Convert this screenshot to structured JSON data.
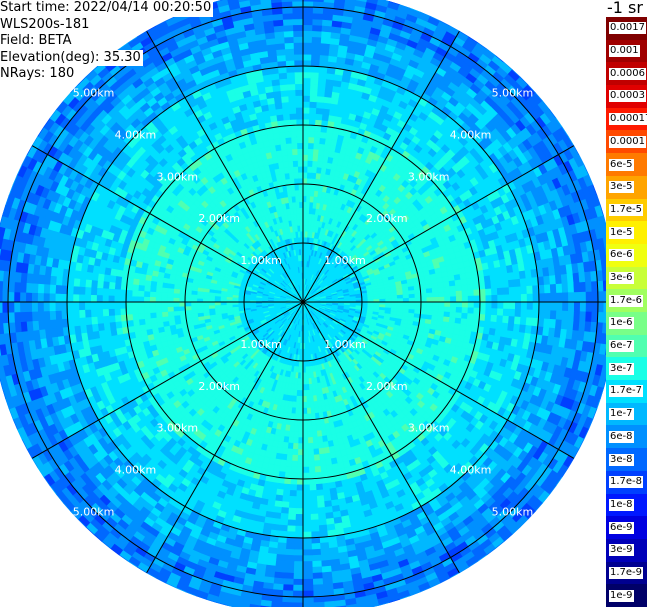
{
  "header": {
    "start_time": "Start time: 2022/04/14 00:20:50",
    "site": "WLS200s-181",
    "field": "Field: BETA",
    "elevation": "Elevation(deg): 35.30",
    "nrays": "NRays: 180"
  },
  "chart_data": {
    "type": "heatmap",
    "projection": "polar (PPI)",
    "rays": 180,
    "field": "BETA",
    "range_rings_km": [
      1,
      2,
      3,
      4,
      5
    ],
    "range_ring_labels": [
      "1.00km",
      "2.00km",
      "3.00km",
      "4.00km",
      "5.00km"
    ],
    "max_range_km": 5.3,
    "radial_profile": [
      {
        "range_km": 0.0,
        "value": "1.7e-7"
      },
      {
        "range_km": 1.0,
        "value": "1.7e-7"
      },
      {
        "range_km": 1.05,
        "value": "3e-7"
      },
      {
        "range_km": 3.0,
        "value": "3e-7"
      },
      {
        "range_km": 3.1,
        "value": "1.7e-7"
      },
      {
        "range_km": 4.0,
        "value": "1e-7"
      },
      {
        "range_km": 4.6,
        "value": "6e-8"
      },
      {
        "range_km": 5.3,
        "value": "3e-8"
      }
    ],
    "colorbar": {
      "unit": "-1 sr",
      "labels": [
        "0.0017",
        "0.001",
        "0.0006",
        "0.0003",
        "0.00017",
        "0.0001",
        "6e-5",
        "3e-5",
        "1.7e-5",
        "1e-5",
        "6e-6",
        "3e-6",
        "1.7e-6",
        "1e-6",
        "6e-7",
        "3e-7",
        "1.7e-7",
        "1e-7",
        "6e-8",
        "3e-8",
        "1.7e-8",
        "1e-8",
        "6e-9",
        "3e-9",
        "1.7e-9",
        "1e-9"
      ],
      "colors": [
        "#7f0000",
        "#a00000",
        "#c00000",
        "#e00000",
        "#ff1a00",
        "#ff4a00",
        "#ff7a00",
        "#ffa400",
        "#ffcc00",
        "#fff000",
        "#f0ff10",
        "#c8ff38",
        "#a0ff60",
        "#78ff88",
        "#50ffb0",
        "#1affe6",
        "#00e0ff",
        "#00b8ff",
        "#0090ff",
        "#0068ff",
        "#0040ff",
        "#0018ff",
        "#0000e0",
        "#0000b8",
        "#000090",
        "#000068"
      ]
    }
  }
}
